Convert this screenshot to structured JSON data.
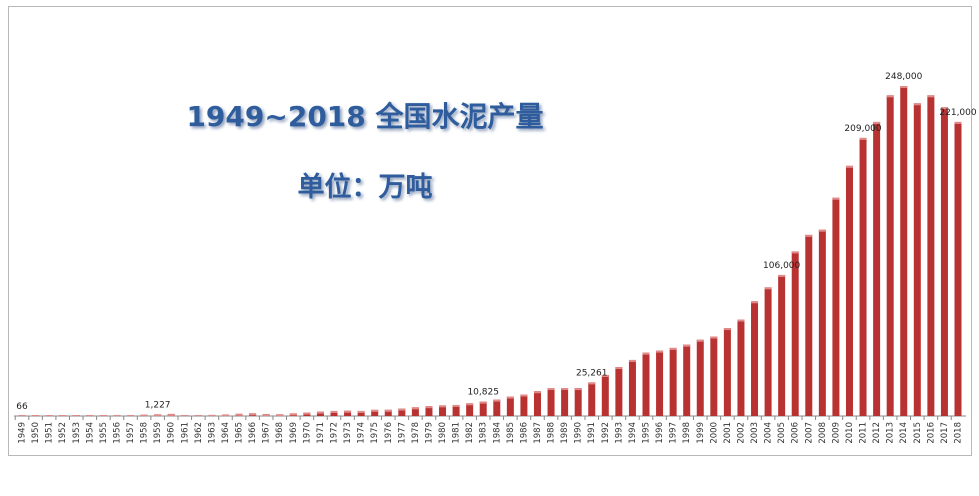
{
  "chart_data": {
    "type": "bar",
    "title": "1949~2018 全国水泥产量",
    "subtitle": "单位：万吨",
    "bar_color": "#b83232",
    "categories": [
      "1949",
      "1950",
      "1951",
      "1952",
      "1953",
      "1954",
      "1955",
      "1956",
      "1957",
      "1958",
      "1959",
      "1960",
      "1961",
      "1962",
      "1963",
      "1964",
      "1965",
      "1966",
      "1967",
      "1968",
      "1969",
      "1970",
      "1971",
      "1972",
      "1973",
      "1974",
      "1975",
      "1976",
      "1977",
      "1978",
      "1979",
      "1980",
      "1981",
      "1982",
      "1983",
      "1984",
      "1985",
      "1986",
      "1987",
      "1988",
      "1989",
      "1990",
      "1991",
      "1992",
      "1993",
      "1994",
      "1995",
      "1996",
      "1997",
      "1998",
      "1999",
      "2000",
      "2001",
      "2002",
      "2003",
      "2004",
      "2005",
      "2006",
      "2007",
      "2008",
      "2009",
      "2010",
      "2011",
      "2012",
      "2013",
      "2014",
      "2015",
      "2016",
      "2017",
      "2018"
    ],
    "values": [
      66,
      141,
      249,
      286,
      388,
      460,
      450,
      639,
      686,
      930,
      1227,
      1565,
      621,
      600,
      806,
      1164,
      1634,
      2015,
      1387,
      1245,
      1963,
      2575,
      3258,
      3783,
      3956,
      3794,
      4626,
      4670,
      5565,
      6524,
      7390,
      7986,
      8290,
      9520,
      10825,
      12302,
      14595,
      16156,
      18625,
      21014,
      21029,
      20971,
      25261,
      30822,
      36788,
      42118,
      47561,
      49119,
      51174,
      53600,
      57300,
      59700,
      66104,
      72500,
      86208,
      96682,
      106000,
      123676,
      136117,
      140000,
      164000,
      188000,
      209000,
      221000,
      241000,
      248000,
      235000,
      241000,
      232000,
      221000
    ],
    "data_labels": [
      {
        "category": "1949",
        "text": "66"
      },
      {
        "category": "1959",
        "text": "1,227"
      },
      {
        "category": "1983",
        "text": "10,825"
      },
      {
        "category": "1991",
        "text": "25,261"
      },
      {
        "category": "2005",
        "text": "106,000"
      },
      {
        "category": "2011",
        "text": "209,000"
      },
      {
        "category": "2014",
        "text": "248,000"
      },
      {
        "category": "2018",
        "text": "221,000"
      }
    ],
    "ylim": [
      0,
      248000
    ],
    "xlabel": "",
    "ylabel": "",
    "grid": false,
    "y_axis_visible": false
  }
}
